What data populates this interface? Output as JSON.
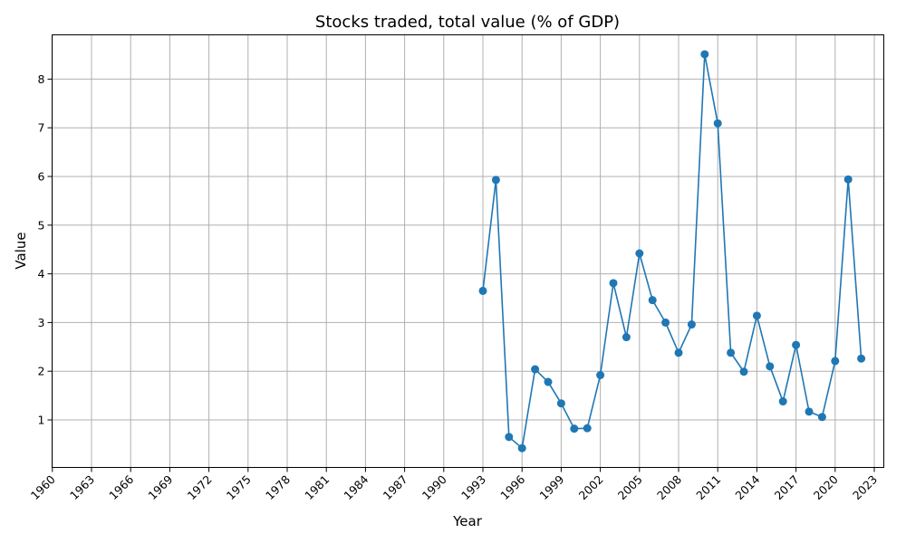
{
  "chart_data": {
    "type": "line",
    "title": "Stocks traded, total value (% of GDP)",
    "xlabel": "Year",
    "ylabel": "Value",
    "xlim": [
      1960,
      2023
    ],
    "ylim": [
      0,
      8.9
    ],
    "x_ticks": [
      1960,
      1963,
      1966,
      1969,
      1972,
      1975,
      1978,
      1981,
      1984,
      1987,
      1990,
      1993,
      1996,
      1999,
      2002,
      2005,
      2008,
      2011,
      2014,
      2017,
      2020,
      2023
    ],
    "y_ticks": [
      1,
      2,
      3,
      4,
      5,
      6,
      7,
      8
    ],
    "grid": true,
    "color": "#1f77b4",
    "marker": "circle",
    "series": [
      {
        "x": [
          1993,
          1994,
          1995,
          1996,
          1997,
          1998,
          1999,
          2000,
          2001,
          2002,
          2003,
          2004,
          2005,
          2006,
          2007,
          2008,
          2009,
          2010,
          2011,
          2012,
          2013,
          2014,
          2015,
          2016,
          2017,
          2018,
          2019,
          2020,
          2021,
          2022
        ],
        "values": [
          3.65,
          5.93,
          0.65,
          0.42,
          2.04,
          1.78,
          1.34,
          0.82,
          0.83,
          1.92,
          3.81,
          2.7,
          4.42,
          3.46,
          3.0,
          2.38,
          2.96,
          8.51,
          7.09,
          2.38,
          1.99,
          3.14,
          2.1,
          1.38,
          2.54,
          1.17,
          1.06,
          2.21,
          5.94,
          2.26
        ]
      }
    ]
  }
}
